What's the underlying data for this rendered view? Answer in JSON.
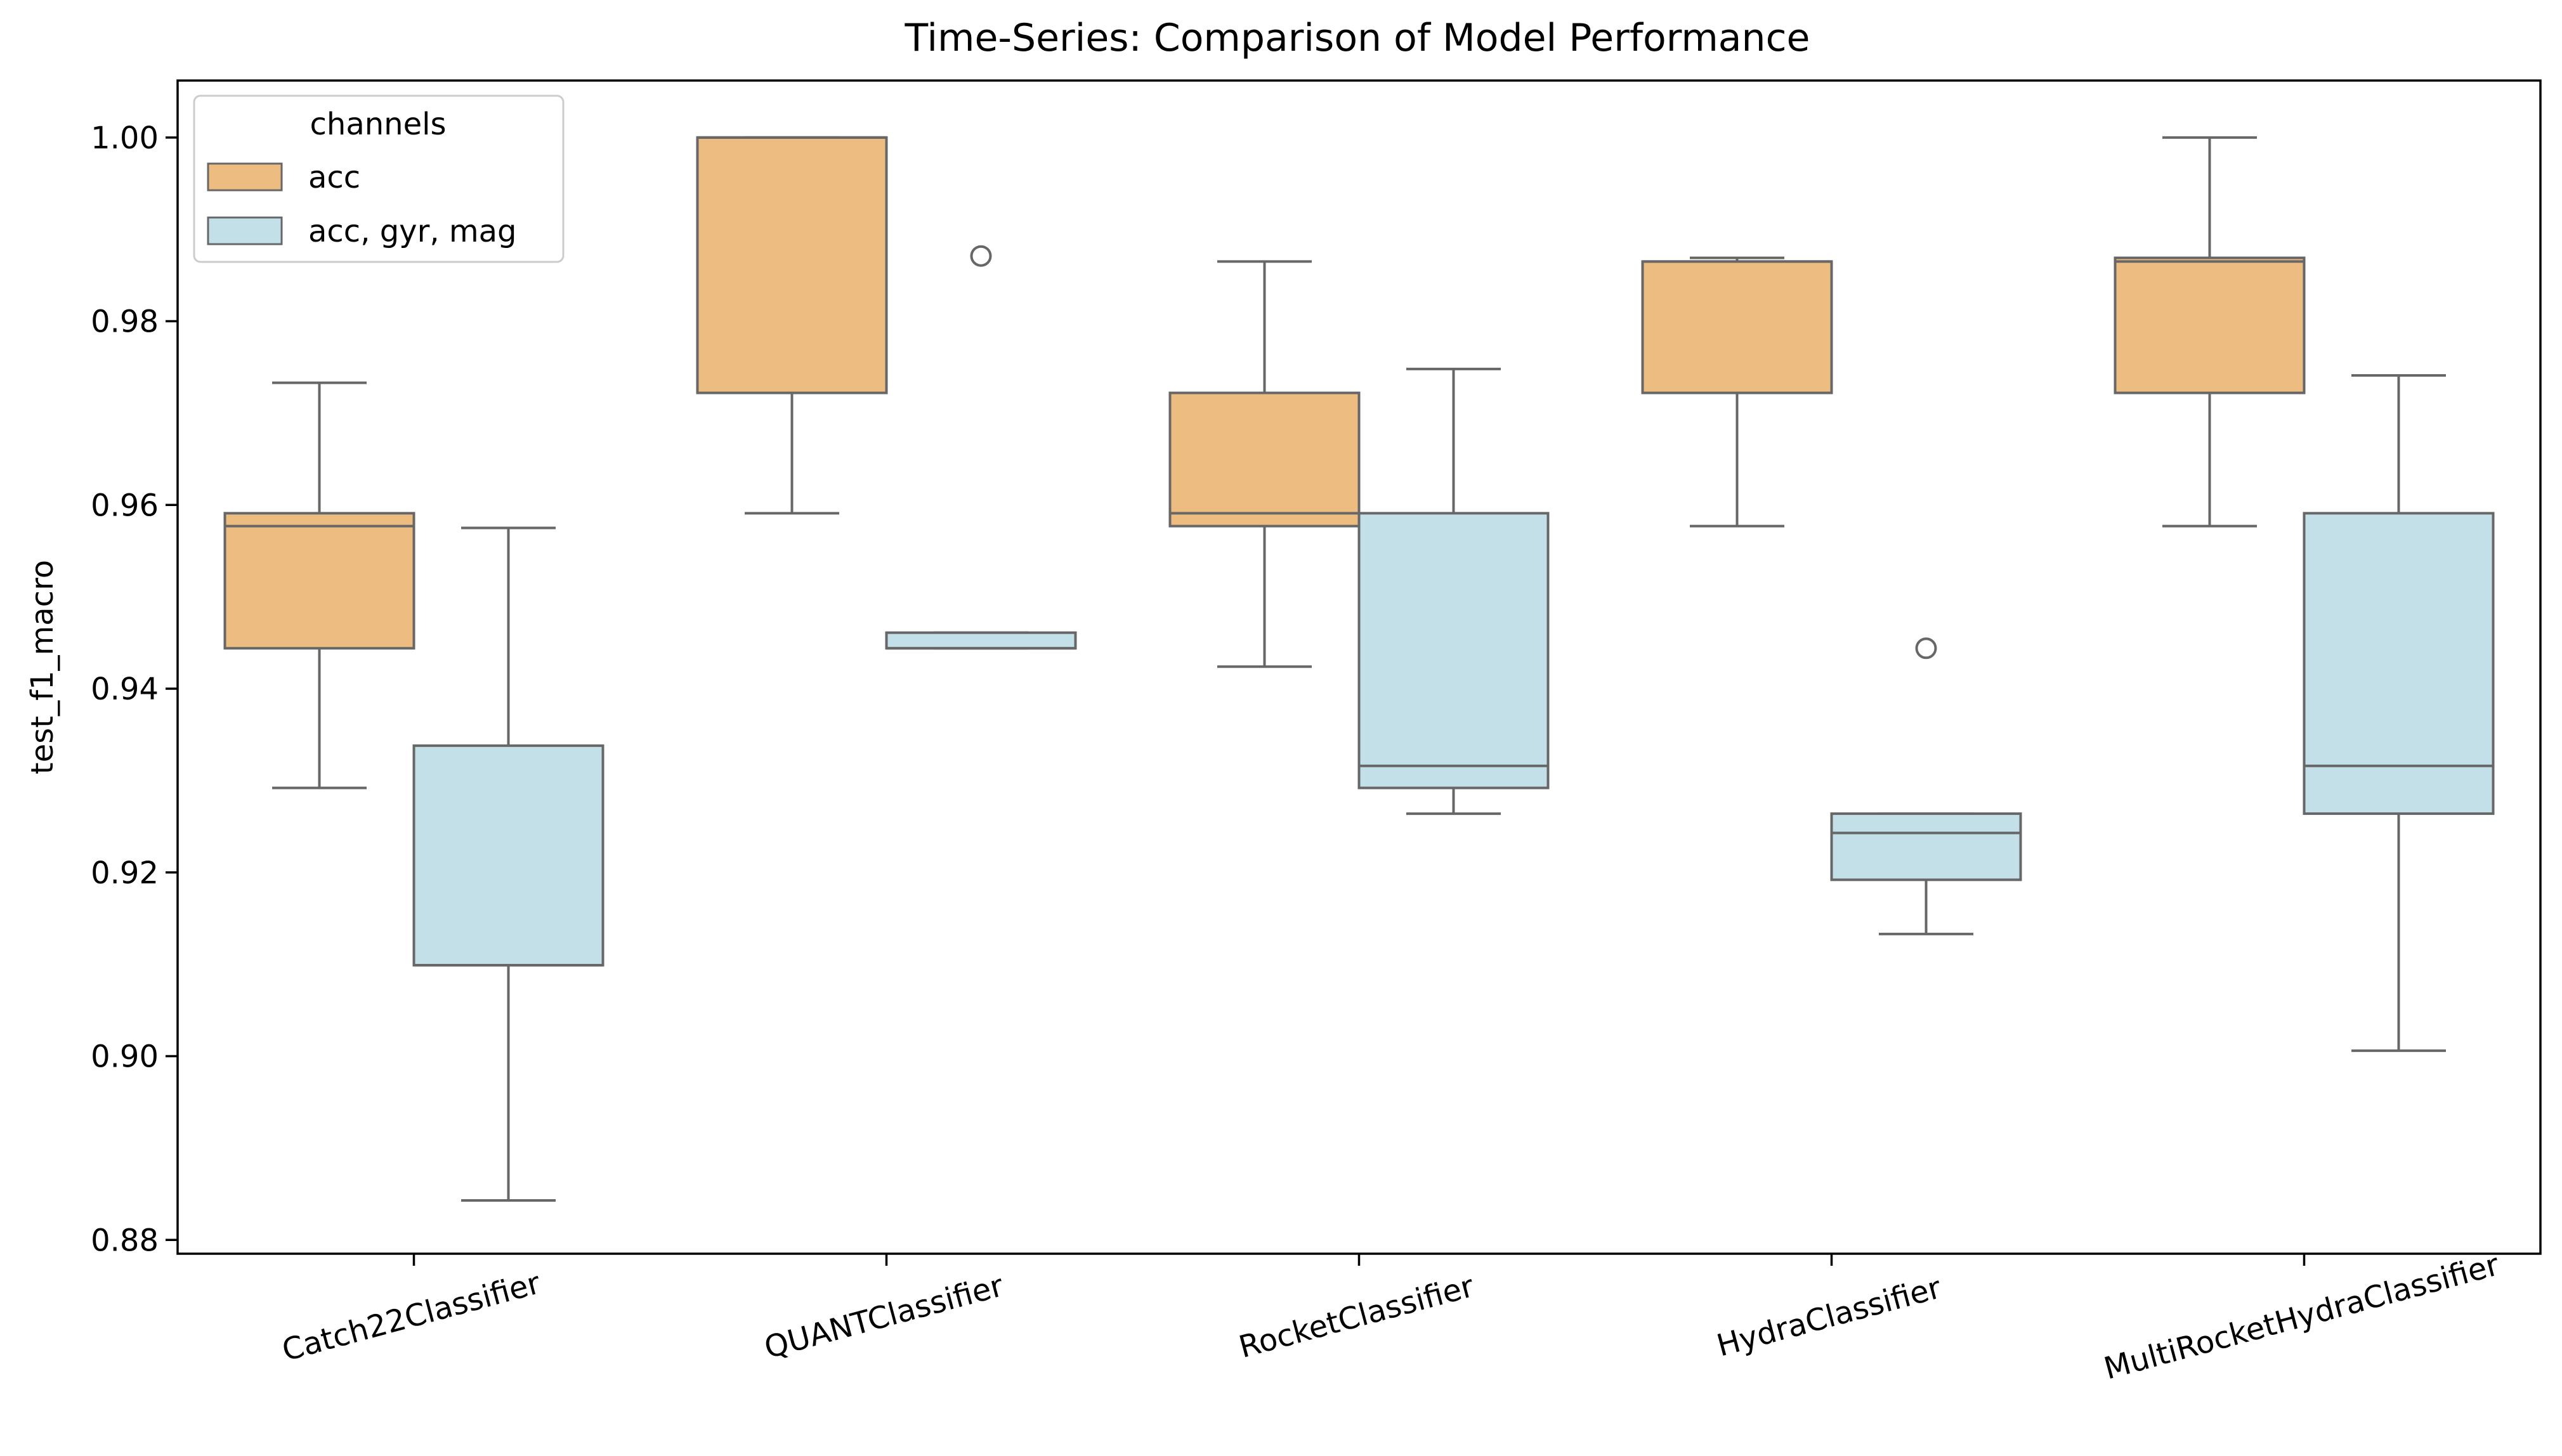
{
  "chart_data": {
    "type": "box",
    "title": "Time-Series: Comparison of Model Performance",
    "xlabel": "",
    "ylabel": "test_f1_macro",
    "ylim": [
      0.8785,
      1.0062
    ],
    "yticks": [
      0.88,
      0.9,
      0.92,
      0.94,
      0.96,
      0.98,
      1.0
    ],
    "ytick_labels": [
      "0.88",
      "0.90",
      "0.92",
      "0.94",
      "0.96",
      "0.98",
      "1.00"
    ],
    "categories": [
      "Catch22Classifier",
      "QUANTClassifier",
      "RocketClassifier",
      "HydraClassifier",
      "MultiRocketHydraClassifier"
    ],
    "legend": {
      "title": "channels",
      "placement": "top-left",
      "entries": [
        {
          "label": "acc",
          "color": "#ecbc80"
        },
        {
          "label": "acc, gyr, mag",
          "color": "#c3e0e8"
        }
      ]
    },
    "series": [
      {
        "name": "acc",
        "color": "#ecbc80",
        "boxes": [
          {
            "whislo": 0.9292,
            "q1": 0.9444,
            "med": 0.9577,
            "q3": 0.9591,
            "whishi": 0.9733,
            "fliers": []
          },
          {
            "whislo": 0.9591,
            "q1": 0.9722,
            "med": 1.0,
            "q3": 1.0,
            "whishi": 1.0,
            "fliers": []
          },
          {
            "whislo": 0.9424,
            "q1": 0.9577,
            "med": 0.9591,
            "q3": 0.9722,
            "whishi": 0.9865,
            "fliers": []
          },
          {
            "whislo": 0.9577,
            "q1": 0.9722,
            "med": 0.9865,
            "q3": 0.9865,
            "whishi": 0.9869,
            "fliers": []
          },
          {
            "whislo": 0.9577,
            "q1": 0.9722,
            "med": 0.9865,
            "q3": 0.9869,
            "whishi": 1.0,
            "fliers": []
          }
        ]
      },
      {
        "name": "acc, gyr, mag",
        "color": "#c3e0e8",
        "boxes": [
          {
            "whislo": 0.8843,
            "q1": 0.9099,
            "med": 0.9099,
            "q3": 0.9338,
            "whishi": 0.9575,
            "fliers": []
          },
          {
            "whislo": 0.9444,
            "q1": 0.9444,
            "med": 0.9444,
            "q3": 0.9461,
            "whishi": 0.9461,
            "fliers": [
              0.9871
            ]
          },
          {
            "whislo": 0.9264,
            "q1": 0.9292,
            "med": 0.9316,
            "q3": 0.9591,
            "whishi": 0.9748,
            "fliers": []
          },
          {
            "whislo": 0.9133,
            "q1": 0.9192,
            "med": 0.9243,
            "q3": 0.9264,
            "whishi": 0.9264,
            "fliers": [
              0.9444
            ]
          },
          {
            "whislo": 0.9006,
            "q1": 0.9264,
            "med": 0.9316,
            "q3": 0.9591,
            "whishi": 0.9741,
            "fliers": []
          }
        ]
      }
    ],
    "grid": false,
    "edge_color": "#676767"
  }
}
